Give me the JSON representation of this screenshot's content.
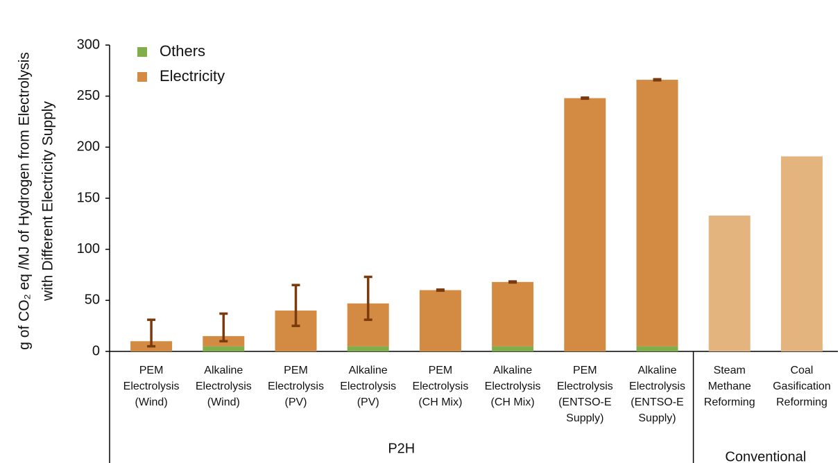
{
  "chart_data": {
    "type": "stacked_bar",
    "y_label": [
      "g of CO₂ eq /MJ of Hydrogen from Electrolysis",
      "with Different Electricity Supply"
    ],
    "categories": [
      [
        "PEM",
        "Electrolysis",
        "(Wind)"
      ],
      [
        "Alkaline",
        "Electrolysis",
        "(Wind)"
      ],
      [
        "PEM",
        "Electrolysis",
        "(PV)"
      ],
      [
        "Alkaline",
        "Electrolysis",
        "(PV)"
      ],
      [
        "PEM",
        "Electrolysis",
        "(CH Mix)"
      ],
      [
        "Alkaline",
        "Electrolysis",
        "(CH Mix)"
      ],
      [
        "PEM",
        "Electrolysis",
        "(ENTSO-E",
        "Supply)"
      ],
      [
        "Alkaline",
        "Electrolysis",
        "(ENTSO-E",
        "Supply)"
      ],
      [
        "Steam",
        "Methane",
        "Reforming"
      ],
      [
        "Coal",
        "Gasification",
        "Reforming"
      ]
    ],
    "groups": [
      {
        "label": "P2H",
        "size": 8
      },
      {
        "label": "Conventional",
        "size": 2
      }
    ],
    "series": [
      {
        "name": "Others",
        "color": "#7fae4b",
        "values": [
          0,
          5,
          0,
          5,
          0,
          5,
          0,
          5,
          null,
          null
        ]
      },
      {
        "name": "Electricity",
        "color": "#d38a42",
        "colors": [
          "#d38a42",
          "#d38a42",
          "#d38a42",
          "#d38a42",
          "#d38a42",
          "#d38a42",
          "#d38a42",
          "#d38a42",
          "#e3b47e",
          "#e3b47e"
        ],
        "values": [
          10,
          10,
          40,
          42,
          60,
          63,
          248,
          261,
          133,
          191
        ],
        "error_bounds": [
          [
            5,
            31
          ],
          [
            10,
            37
          ],
          [
            25,
            65
          ],
          [
            31,
            73
          ],
          [
            59.5,
            60.5
          ],
          [
            67.5,
            68.5
          ],
          [
            247.5,
            248.5
          ],
          [
            265.5,
            266.5
          ],
          null,
          null
        ],
        "error_color": "#7a3a0e"
      }
    ],
    "ylim": [
      0,
      300
    ],
    "yticks": [
      0,
      50,
      100,
      150,
      200,
      250,
      300
    ],
    "grid": false,
    "legend": "top-left"
  }
}
